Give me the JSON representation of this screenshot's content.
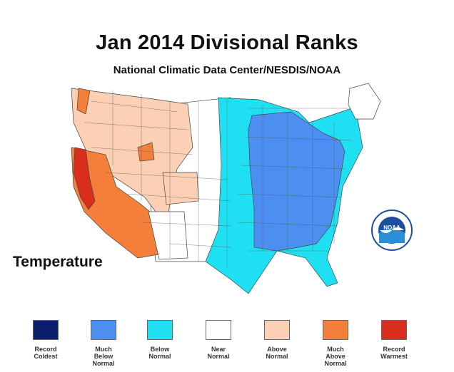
{
  "title": "Jan 2014 Divisional Ranks",
  "subtitle": "National Climatic Data Center/NESDIS/NOAA",
  "parameter_label": "Temperature",
  "legend": [
    {
      "line1": "Record",
      "line2": "Coldest",
      "line3": "",
      "color": "#0b1e6e"
    },
    {
      "line1": "Much",
      "line2": "Below",
      "line3": "Normal",
      "color": "#4d8ff0"
    },
    {
      "line1": "Below",
      "line2": "Normal",
      "line3": "",
      "color": "#1fe0f2"
    },
    {
      "line1": "Near",
      "line2": "Normal",
      "line3": "",
      "color": "#ffffff"
    },
    {
      "line1": "Above",
      "line2": "Normal",
      "line3": "",
      "color": "#fcd0b4"
    },
    {
      "line1": "Much",
      "line2": "Above",
      "line3": "Normal",
      "color": "#f47f3a"
    },
    {
      "line1": "Record",
      "line2": "Warmest",
      "line3": "",
      "color": "#da2e1c"
    }
  ],
  "noaa_logo_text": "NOAA"
}
